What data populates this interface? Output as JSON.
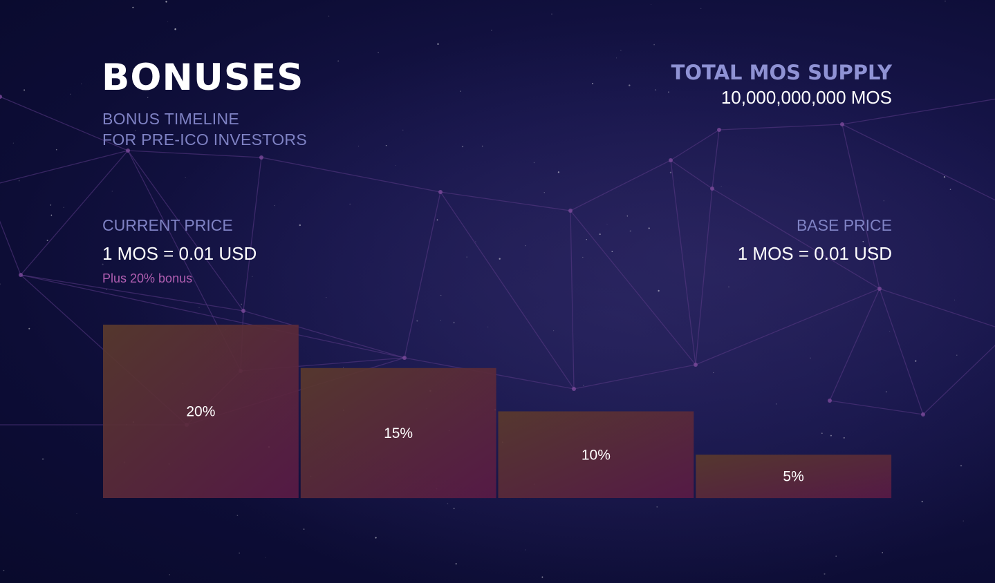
{
  "header": {
    "title": "BONUSES",
    "subtitle_line1": "BONUS TIMELINE",
    "subtitle_line2": "FOR PRE-ICO INVESTORS"
  },
  "supply": {
    "label": "TOTAL MOS SUPPLY",
    "value": "10,000,000,000 MOS"
  },
  "current_price": {
    "label": "CURRENT PRICE",
    "value": "1 MOS = 0.01 USD",
    "note": "Plus 20% bonus"
  },
  "base_price": {
    "label": "BASE PRICE",
    "value": "1 MOS = 0.01 USD"
  },
  "colors": {
    "bar_top": "#5a3a2c",
    "bar_bottom": "#5a1a46",
    "accent_text": "#7f82c4",
    "note_text": "#b25fb2"
  },
  "chart_data": {
    "type": "bar",
    "categories": [
      "20%",
      "15%",
      "10%",
      "5%"
    ],
    "values": [
      20,
      15,
      10,
      5
    ],
    "data_labels": [
      "20%",
      "15%",
      "10%",
      "5%"
    ],
    "title": "",
    "xlabel": "",
    "ylabel": "",
    "ylim": [
      0,
      20
    ],
    "grid": false
  }
}
